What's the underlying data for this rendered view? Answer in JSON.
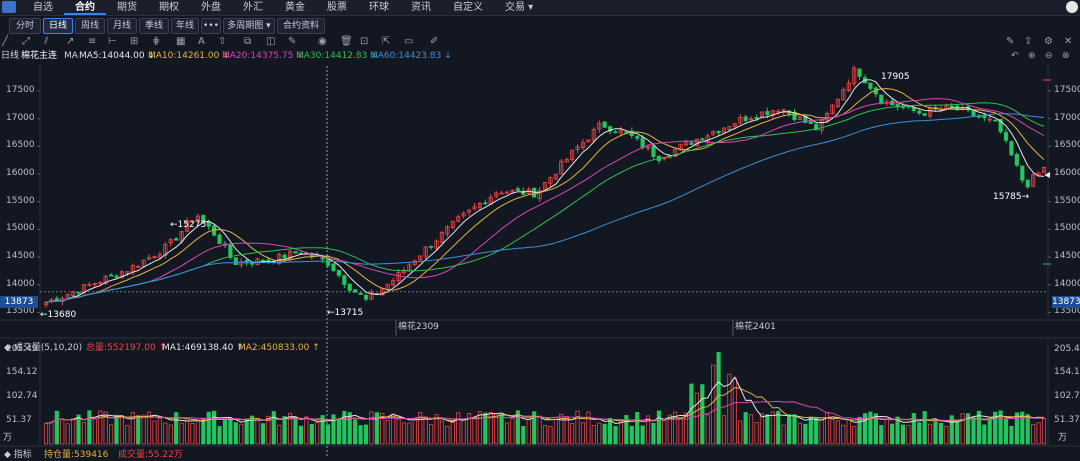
{
  "menu": {
    "items": [
      "自选",
      "合约",
      "期货",
      "期权",
      "外盘",
      "外汇",
      "黄金",
      "股票",
      "环球",
      "资讯",
      "自定义",
      "交易 ▾"
    ],
    "active_index": 1
  },
  "periods": {
    "items": [
      "分时",
      "日线",
      "周线",
      "月线",
      "季线",
      "年线"
    ],
    "active_index": 1,
    "more": "•••",
    "multi_period": "多周期图 ▾",
    "contract_info": "合约资料"
  },
  "legend": {
    "period": "日线",
    "symbol": "棉花主连",
    "ma": "MA",
    "ma5": "MA5:14044.00 ↓",
    "ma10": "MA10:14261.00 ↓",
    "ma20": "MA20:14375.75 ↓",
    "ma30": "MA30:14412.83 ↓",
    "ma60": "MA60:14423.83 ↓"
  },
  "colors": {
    "up": "#ef4444",
    "down": "#22c55e",
    "ma5": "#e6e6e6",
    "ma10": "#e3b341",
    "ma20": "#d946b5",
    "ma30": "#2fbf4f",
    "ma60": "#3b8fd9",
    "price_line": "#1d4f91"
  },
  "price_axis": {
    "ticks": [
      17500,
      17000,
      16500,
      16000,
      15500,
      15000,
      14500,
      14000,
      13500
    ],
    "ylim": [
      13400,
      17950
    ],
    "current": "13873"
  },
  "annotations": {
    "high": "17905",
    "low_end": "15785→",
    "peak_left": "←15275",
    "low_left": "←13680",
    "low_mid": "←13715"
  },
  "contracts": [
    "棉花2309",
    "棉花2401"
  ],
  "volume": {
    "title": "成交量(5,10,20)",
    "total": "总量:552197.00 ↑",
    "ma1": "MA1:469138.40 ↑",
    "ma2": "MA2:450833.00 ↑",
    "ticks": [
      "205.49",
      "154.12",
      "102.74",
      "51.37"
    ],
    "unit": "万",
    "ylim": [
      0,
      205.49
    ]
  },
  "bottom": {
    "title": "指标",
    "oi": "持仓量:539416",
    "vol": "成交量:55.22万"
  },
  "chart_data": {
    "type": "candlestick",
    "series_count": 185,
    "ticks": [
      17500,
      17000,
      16500,
      16000,
      15500,
      15000,
      14500,
      14000,
      13500
    ],
    "ylim": [
      13400,
      17950
    ],
    "anchors": [
      [
        0,
        13680
      ],
      [
        8,
        13950
      ],
      [
        18,
        14300
      ],
      [
        26,
        14700
      ],
      [
        32,
        15275
      ],
      [
        36,
        14900
      ],
      [
        40,
        14400
      ],
      [
        48,
        14450
      ],
      [
        54,
        14600
      ],
      [
        60,
        14400
      ],
      [
        64,
        14000
      ],
      [
        68,
        13715
      ],
      [
        74,
        14100
      ],
      [
        80,
        14600
      ],
      [
        88,
        15200
      ],
      [
        96,
        15700
      ],
      [
        104,
        15650
      ],
      [
        112,
        16400
      ],
      [
        118,
        16900
      ],
      [
        124,
        16700
      ],
      [
        130,
        16300
      ],
      [
        140,
        16700
      ],
      [
        148,
        17000
      ],
      [
        156,
        17200
      ],
      [
        164,
        16800
      ],
      [
        172,
        17905
      ],
      [
        178,
        17300
      ],
      [
        186,
        17100
      ],
      [
        192,
        17200
      ],
      [
        196,
        17100
      ],
      [
        202,
        16900
      ],
      [
        208,
        15785
      ],
      [
        212,
        16100
      ]
    ]
  }
}
